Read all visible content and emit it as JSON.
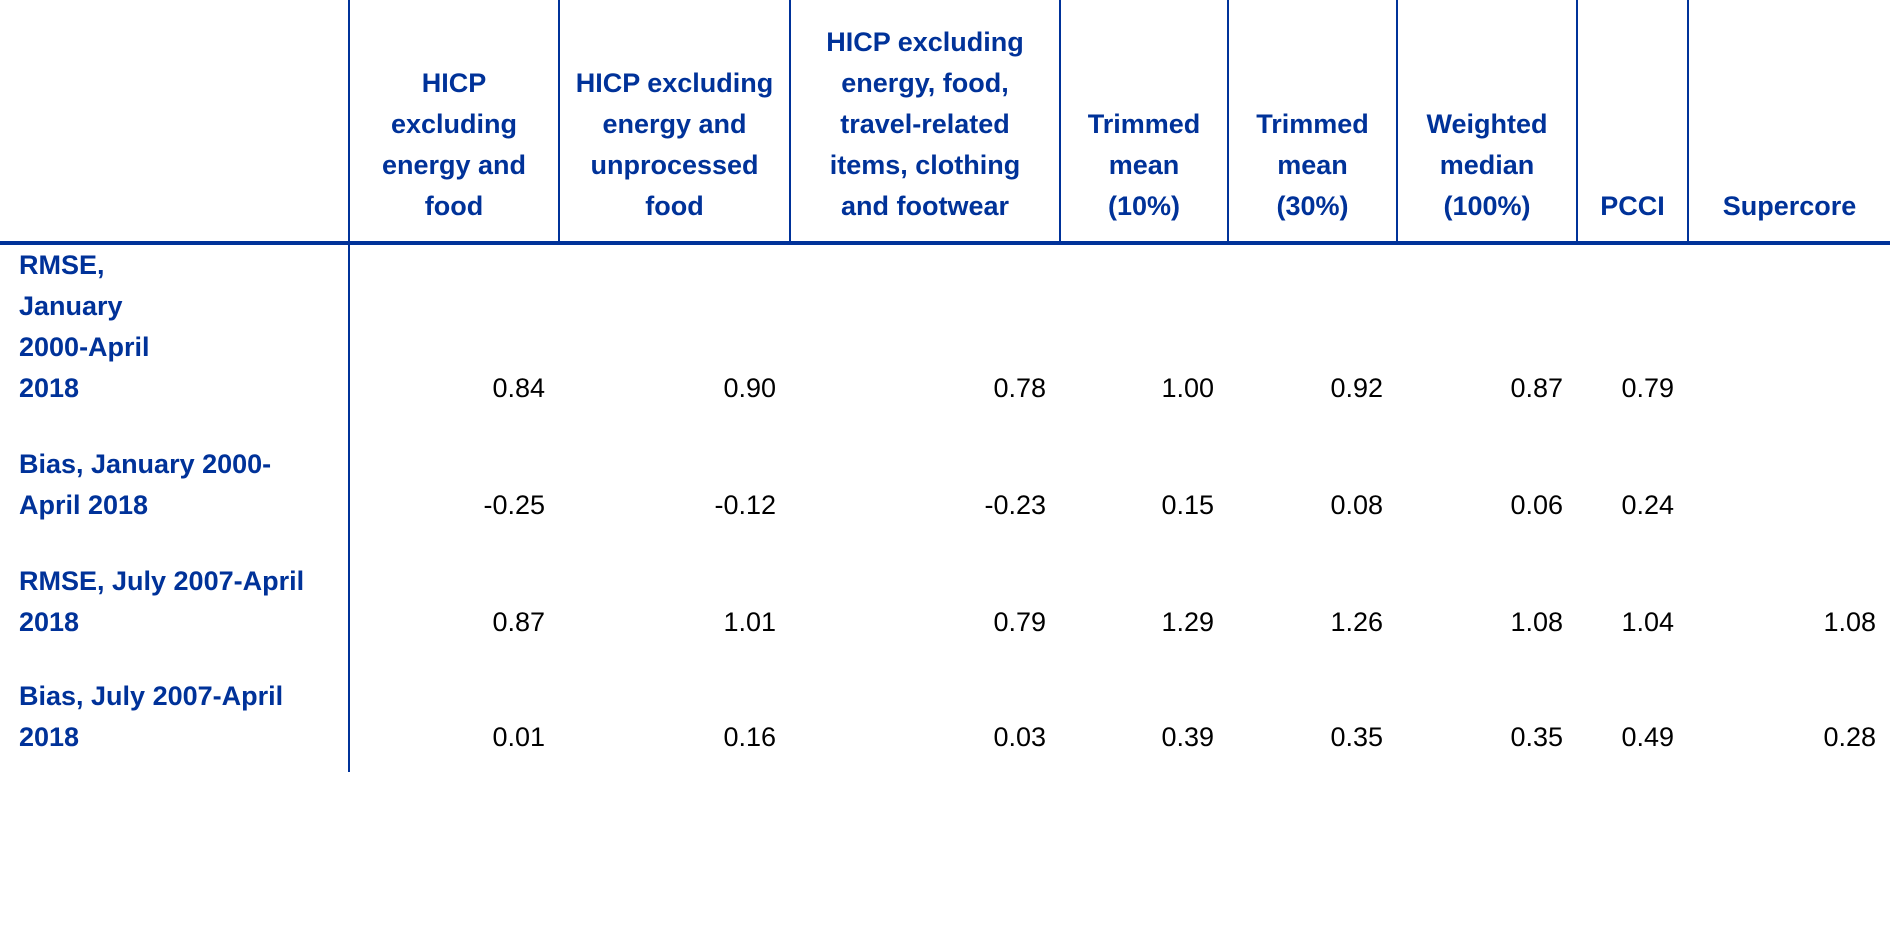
{
  "table": {
    "columns": [
      "HICP excluding energy and food",
      "HICP excluding energy and unprocessed food",
      "HICP excluding energy, food, travel-related items, clothing and footwear",
      "Trimmed mean (10%)",
      "Trimmed mean (30%)",
      "Weighted median (100%)",
      "PCCI",
      "Supercore"
    ],
    "rows": [
      {
        "label": "RMSE, January 2000-April 2018",
        "values": [
          "0.84",
          "0.90",
          "0.78",
          "1.00",
          "0.92",
          "0.87",
          "0.79",
          ""
        ]
      },
      {
        "label": "Bias, January 2000-April 2018",
        "values": [
          "-0.25",
          "-0.12",
          "-0.23",
          "0.15",
          "0.08",
          "0.06",
          "0.24",
          ""
        ]
      },
      {
        "label": "RMSE, July 2007-April 2018",
        "values": [
          "0.87",
          "1.01",
          "0.79",
          "1.29",
          "1.26",
          "1.08",
          "1.04",
          "1.08"
        ]
      },
      {
        "label": "Bias, July 2007-April 2018",
        "values": [
          "0.01",
          "0.16",
          "0.03",
          "0.39",
          "0.35",
          "0.35",
          "0.49",
          "0.28"
        ]
      }
    ]
  },
  "colors": {
    "header": "#003299",
    "values": "#000000"
  }
}
